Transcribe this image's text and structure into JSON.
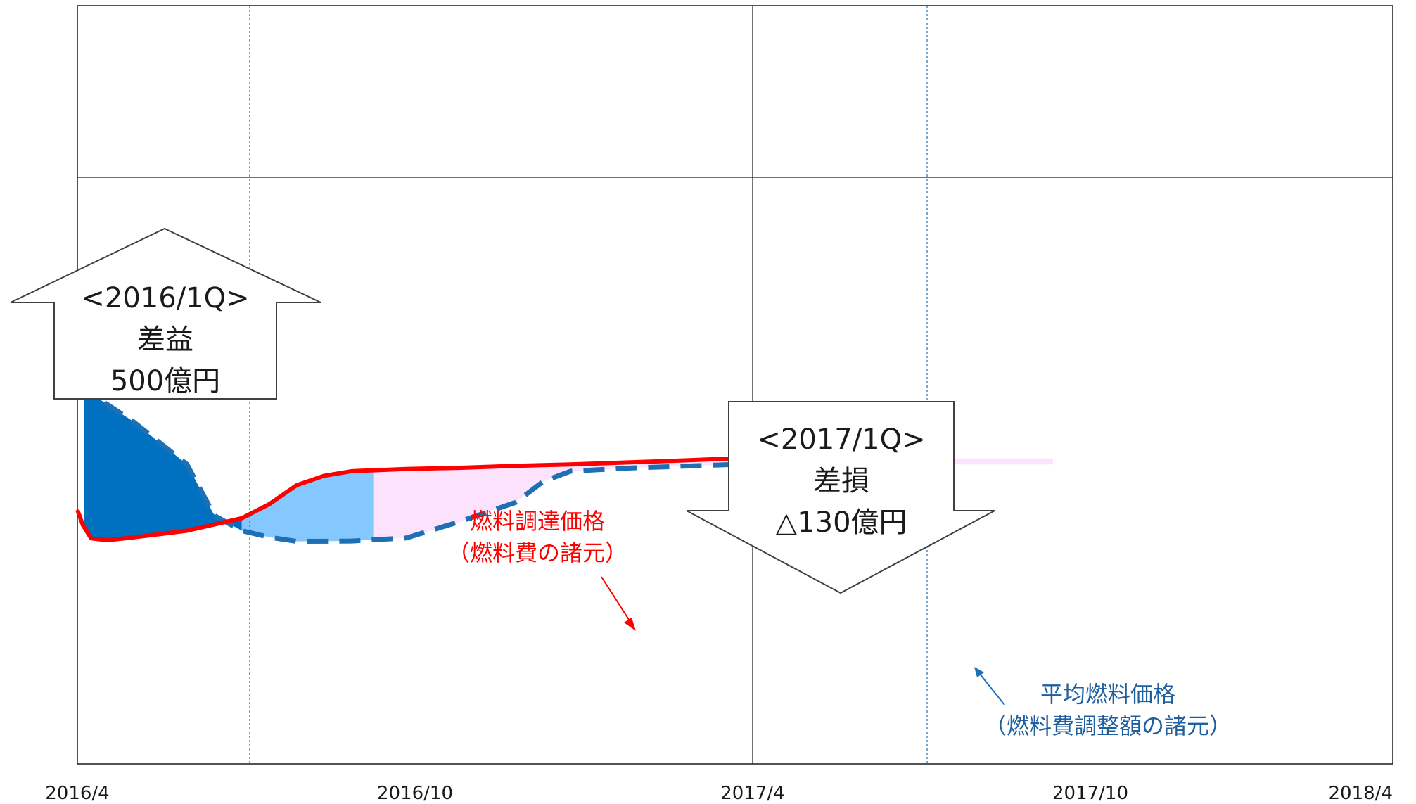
{
  "chart_data": {
    "type": "line",
    "x_ticks": [
      "2016/4",
      "2016/10",
      "2017/4",
      "2017/10",
      "2018/4"
    ],
    "colors": {
      "procurement": "#FF0000",
      "average": "#1F6FB5",
      "gain_q1": "#0070C0",
      "gain_q2": "#85C8FF",
      "diff_fill": "#FDE2FD",
      "loss_q1": "#FF00FF",
      "grid": "#1a1a1a",
      "quarter_line": "#1F6FB5",
      "annotation_text": "#1F5F9E"
    },
    "series": [
      {
        "key": "procurement",
        "name_line1": "燃料調達価格",
        "name_line2": "（燃料費の諸元）",
        "style": "solid",
        "points": [
          [
            0.0,
            6.7
          ],
          [
            0.1,
            6.3
          ],
          [
            0.25,
            5.95
          ],
          [
            0.55,
            5.9
          ],
          [
            1.0,
            5.97
          ],
          [
            2.0,
            6.15
          ],
          [
            3.0,
            6.48
          ],
          [
            3.5,
            6.85
          ],
          [
            4.0,
            7.35
          ],
          [
            4.5,
            7.6
          ],
          [
            5.0,
            7.72
          ],
          [
            6.0,
            7.78
          ],
          [
            7.0,
            7.81
          ],
          [
            8.0,
            7.86
          ],
          [
            9.0,
            7.9
          ],
          [
            10.0,
            7.95
          ],
          [
            11.0,
            8.0
          ],
          [
            12.0,
            8.06
          ]
        ]
      },
      {
        "key": "average",
        "name_line1": "平均燃料価格",
        "name_line2": "（燃料費調整額の諸元）",
        "style": "dashed",
        "points": [
          [
            0.0,
            10.0
          ],
          [
            1.0,
            9.05
          ],
          [
            2.0,
            7.9
          ],
          [
            2.5,
            6.55
          ],
          [
            3.0,
            6.15
          ],
          [
            3.5,
            5.98
          ],
          [
            4.0,
            5.87
          ],
          [
            5.0,
            5.88
          ],
          [
            6.0,
            5.96
          ],
          [
            7.0,
            6.4
          ],
          [
            8.0,
            6.9
          ],
          [
            8.5,
            7.45
          ],
          [
            9.0,
            7.72
          ],
          [
            10.0,
            7.8
          ],
          [
            11.0,
            7.85
          ],
          [
            12.0,
            7.9
          ]
        ]
      }
    ],
    "callouts": [
      {
        "key": "gain",
        "direction": "up",
        "line1": "<2016/1Q>",
        "line2": "差益",
        "line3": "500億円"
      },
      {
        "key": "loss",
        "direction": "down",
        "line1": "<2017/1Q>",
        "line2": "差損",
        "line3": "△130億円"
      }
    ]
  }
}
